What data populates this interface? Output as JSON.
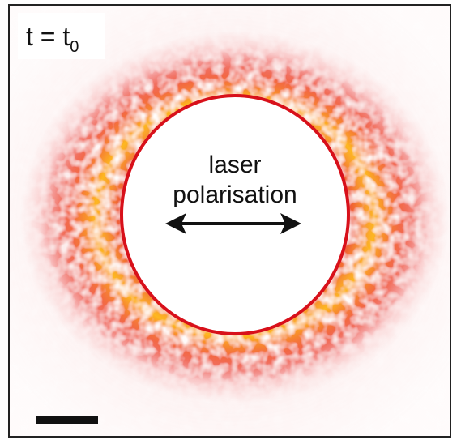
{
  "label": {
    "main": "t = t",
    "subscript": "0"
  },
  "annotation": {
    "lines": [
      "laser",
      "polarisation"
    ]
  }
}
